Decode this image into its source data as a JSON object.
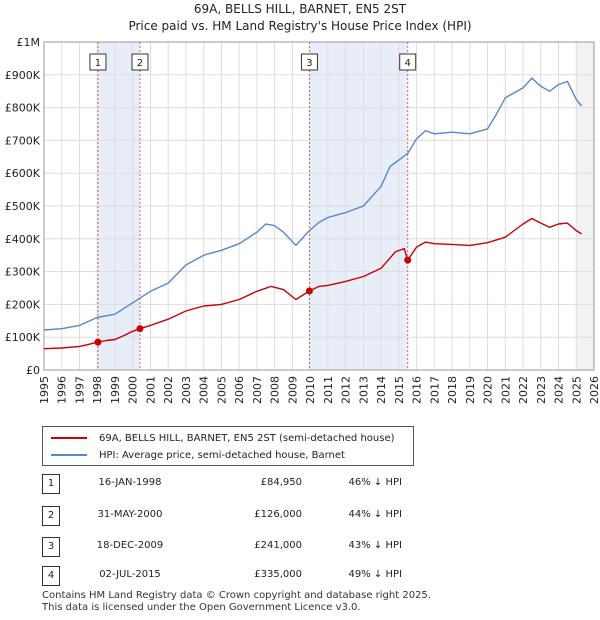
{
  "header": {
    "title": "69A, BELLS HILL, BARNET, EN5 2ST",
    "subtitle": "Price paid vs. HM Land Registry's House Price Index (HPI)"
  },
  "chart_data": {
    "type": "line",
    "title": "69A, BELLS HILL, BARNET, EN5 2ST",
    "subtitle": "Price paid vs. HM Land Registry's House Price Index (HPI)",
    "xlabel": "",
    "ylabel": "",
    "xlim": [
      1995,
      2026
    ],
    "ylim": [
      0,
      1000000
    ],
    "x_ticks": [
      "1995",
      "1996",
      "1997",
      "1998",
      "1999",
      "2000",
      "2001",
      "2002",
      "2003",
      "2004",
      "2005",
      "2006",
      "2007",
      "2008",
      "2009",
      "2010",
      "2011",
      "2012",
      "2013",
      "2014",
      "2015",
      "2016",
      "2017",
      "2018",
      "2019",
      "2020",
      "2021",
      "2022",
      "2023",
      "2024",
      "2025",
      "2026"
    ],
    "y_ticks": [
      {
        "value": 0,
        "label": "£0"
      },
      {
        "value": 100000,
        "label": "£100K"
      },
      {
        "value": 200000,
        "label": "£200K"
      },
      {
        "value": 300000,
        "label": "£300K"
      },
      {
        "value": 400000,
        "label": "£400K"
      },
      {
        "value": 500000,
        "label": "£500K"
      },
      {
        "value": 600000,
        "label": "£600K"
      },
      {
        "value": 700000,
        "label": "£700K"
      },
      {
        "value": 800000,
        "label": "£800K"
      },
      {
        "value": 900000,
        "label": "£900K"
      },
      {
        "value": 1000000,
        "label": "£1M"
      }
    ],
    "grid": true,
    "legend_position": "below",
    "series": [
      {
        "name": "69A, BELLS HILL, BARNET, EN5 2ST (semi-detached house)",
        "color": "#cc0000",
        "x": [
          1995.0,
          1996.0,
          1997.0,
          1997.5,
          1998.04,
          1998.5,
          1999.0,
          1999.5,
          2000.0,
          2000.41,
          2001.0,
          2002.0,
          2003.0,
          2004.0,
          2005.0,
          2006.0,
          2007.0,
          2007.8,
          2008.5,
          2009.2,
          2009.96,
          2010.5,
          2011.0,
          2012.0,
          2013.0,
          2014.0,
          2014.8,
          2015.3,
          2015.5,
          2016.0,
          2016.5,
          2017.0,
          2018.0,
          2019.0,
          2020.0,
          2021.0,
          2022.0,
          2022.5,
          2023.0,
          2023.5,
          2024.0,
          2024.5,
          2025.0,
          2025.3
        ],
        "values": [
          65000,
          67000,
          72000,
          78000,
          84950,
          90000,
          93000,
          105000,
          118000,
          126000,
          136000,
          155000,
          180000,
          195000,
          200000,
          215000,
          240000,
          255000,
          245000,
          215000,
          241000,
          255000,
          258000,
          270000,
          285000,
          310000,
          360000,
          370000,
          335000,
          375000,
          390000,
          385000,
          383000,
          380000,
          388000,
          405000,
          445000,
          462000,
          448000,
          435000,
          445000,
          448000,
          425000,
          415000
        ]
      },
      {
        "name": "HPI: Average price, semi-detached house, Barnet",
        "color": "#5588cc",
        "x": [
          1995.0,
          1996.0,
          1997.0,
          1998.0,
          1999.0,
          2000.0,
          2001.0,
          2002.0,
          2003.0,
          2004.0,
          2005.0,
          2006.0,
          2007.0,
          2007.5,
          2008.0,
          2008.5,
          2009.2,
          2009.96,
          2010.5,
          2011.0,
          2012.0,
          2013.0,
          2014.0,
          2014.5,
          2015.0,
          2015.5,
          2016.0,
          2016.5,
          2017.0,
          2018.0,
          2019.0,
          2020.0,
          2020.5,
          2021.0,
          2022.0,
          2022.5,
          2023.0,
          2023.5,
          2024.0,
          2024.5,
          2025.0,
          2025.3
        ],
        "values": [
          122000,
          126000,
          136000,
          160000,
          170000,
          205000,
          240000,
          265000,
          320000,
          350000,
          365000,
          385000,
          420000,
          445000,
          440000,
          420000,
          380000,
          425000,
          450000,
          465000,
          480000,
          500000,
          560000,
          620000,
          640000,
          660000,
          705000,
          730000,
          720000,
          725000,
          720000,
          735000,
          780000,
          830000,
          860000,
          890000,
          865000,
          850000,
          870000,
          880000,
          825000,
          805000
        ]
      }
    ],
    "transactions": [
      {
        "id": "1",
        "x": 1998.04,
        "price": 84950
      },
      {
        "id": "2",
        "x": 2000.41,
        "price": 126000
      },
      {
        "id": "3",
        "x": 2009.96,
        "price": 241000
      },
      {
        "id": "4",
        "x": 2015.5,
        "price": 335000
      }
    ]
  },
  "legend": {
    "items": [
      {
        "label": "69A, BELLS HILL, BARNET, EN5 2ST (semi-detached house)",
        "color": "#cc0000"
      },
      {
        "label": "HPI: Average price, semi-detached house, Barnet",
        "color": "#5588cc"
      }
    ]
  },
  "transactions_table": [
    {
      "num": "1",
      "date": "16-JAN-1998",
      "price": "£84,950",
      "hpi": "46% ↓ HPI"
    },
    {
      "num": "2",
      "date": "31-MAY-2000",
      "price": "£126,000",
      "hpi": "44% ↓ HPI"
    },
    {
      "num": "3",
      "date": "18-DEC-2009",
      "price": "£241,000",
      "hpi": "43% ↓ HPI"
    },
    {
      "num": "4",
      "date": "02-JUL-2015",
      "price": "£335,000",
      "hpi": "49% ↓ HPI"
    }
  ],
  "footer": {
    "line1": "Contains HM Land Registry data © Crown copyright and database right 2025.",
    "line2": "This data is licensed under the Open Government Licence v3.0."
  },
  "colors": {
    "price_line": "#cc0000",
    "hpi_line": "#5588cc",
    "shade": "#e8eef8",
    "grid": "#dddddd",
    "marker_line": "#cc6666"
  }
}
